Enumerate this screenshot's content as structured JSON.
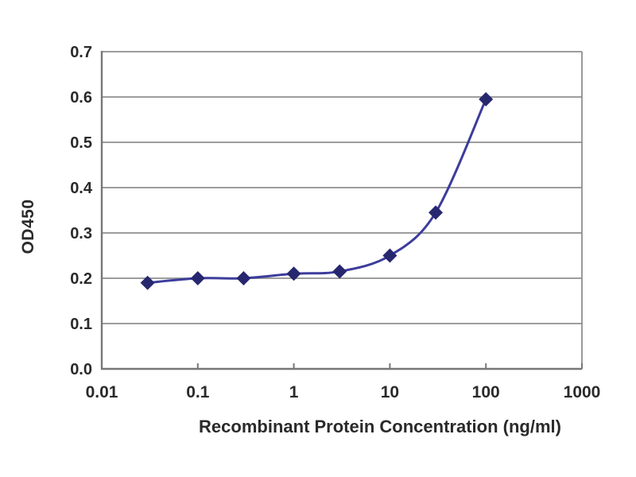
{
  "chart_data": {
    "type": "line",
    "title": "",
    "xlabel": "Recombinant Protein Concentration (ng/ml)",
    "ylabel": "OD450",
    "x_scale": "log",
    "xlim": [
      0.01,
      1000
    ],
    "ylim": [
      0.0,
      0.7
    ],
    "x": [
      0.03,
      0.1,
      0.3,
      1,
      3,
      10,
      30,
      100
    ],
    "values": [
      0.19,
      0.2,
      0.2,
      0.21,
      0.215,
      0.25,
      0.345,
      0.595
    ],
    "x_tick_values": [
      0.01,
      0.1,
      1,
      10,
      100,
      1000
    ],
    "x_tick_labels": [
      "0.01",
      "0.1",
      "1",
      "10",
      "100",
      "1000"
    ],
    "y_tick_values": [
      0.0,
      0.1,
      0.2,
      0.3,
      0.4,
      0.5,
      0.6,
      0.7
    ],
    "y_tick_labels": [
      "0.0",
      "0.1",
      "0.2",
      "0.3",
      "0.4",
      "0.5",
      "0.6",
      "0.7"
    ],
    "grid": "horizontal",
    "legend": "none",
    "marker": "diamond",
    "line_smooth": true,
    "colors": {
      "line": "#3c3c9c",
      "marker": "#27276f",
      "grid": "#8f8f8f",
      "axis": "#777777",
      "tick_text": "#2a2a2a",
      "background": "#ffffff"
    }
  }
}
